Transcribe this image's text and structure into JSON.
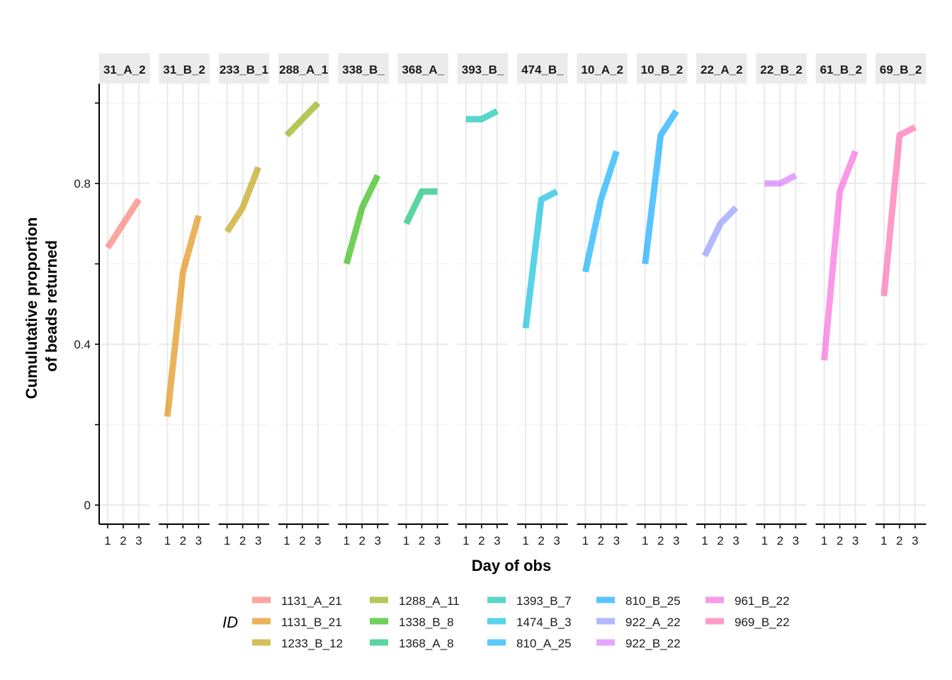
{
  "chart_data": {
    "type": "line",
    "xlabel": "Day of obs",
    "ylabel_lines": [
      "Cumulutative proportion",
      "of beads returned"
    ],
    "x_ticks": [
      "1",
      "2",
      "3"
    ],
    "y_ticks": [
      "0",
      "0.4",
      "0.8"
    ],
    "ylim": [
      -0.05,
      1.04
    ],
    "grid": true,
    "legend_title": "ID",
    "legend_position": "bottom",
    "panels": [
      {
        "strip": "31_A_2",
        "series": "1131_A_21",
        "color": "#F8766D",
        "days": [
          1,
          3
        ],
        "values": [
          0.64,
          0.76
        ]
      },
      {
        "strip": "31_B_2",
        "series": "1131_B_21",
        "color": "#E18A00",
        "days": [
          1,
          2,
          3
        ],
        "values": [
          0.22,
          0.58,
          0.72
        ]
      },
      {
        "strip": "233_B_1",
        "series": "1233_B_12",
        "color": "#BE9C00",
        "days": [
          1,
          2,
          3
        ],
        "values": [
          0.68,
          0.74,
          0.84
        ]
      },
      {
        "strip": "288_A_1",
        "series": "1288_A_11",
        "color": "#8CAB00",
        "days": [
          1,
          3
        ],
        "values": [
          0.92,
          1.0
        ]
      },
      {
        "strip": "338_B_",
        "series": "1338_B_8",
        "color": "#24B700",
        "days": [
          1,
          2,
          3
        ],
        "values": [
          0.6,
          0.74,
          0.82
        ]
      },
      {
        "strip": "368_A_",
        "series": "1368_A_8",
        "color": "#00BE70",
        "days": [
          1,
          2,
          3
        ],
        "values": [
          0.7,
          0.78,
          0.78
        ]
      },
      {
        "strip": "393_B_",
        "series": "1393_B_7",
        "color": "#00C1AB",
        "days": [
          1,
          2,
          3
        ],
        "values": [
          0.96,
          0.96,
          0.98
        ]
      },
      {
        "strip": "474_B_",
        "series": "1474_B_3",
        "color": "#00BBDA",
        "days": [
          1,
          2,
          3
        ],
        "values": [
          0.44,
          0.76,
          0.78
        ]
      },
      {
        "strip": "10_A_2",
        "series": "810_A_25",
        "color": "#00ACFC",
        "days": [
          1,
          2,
          3
        ],
        "values": [
          0.58,
          0.76,
          0.88
        ]
      },
      {
        "strip": "10_B_2",
        "series": "810_B_25",
        "color": "#00A5FF",
        "days": [
          1,
          2,
          3
        ],
        "values": [
          0.6,
          0.92,
          0.98
        ]
      },
      {
        "strip": "22_A_2",
        "series": "922_A_22",
        "color": "#8B93FF",
        "days": [
          1,
          2,
          3
        ],
        "values": [
          0.62,
          0.7,
          0.74
        ]
      },
      {
        "strip": "22_B_2",
        "series": "922_B_22",
        "color": "#D575FE",
        "days": [
          1,
          2,
          3
        ],
        "values": [
          0.8,
          0.8,
          0.82
        ]
      },
      {
        "strip": "61_B_2",
        "series": "961_B_22",
        "color": "#F962DD",
        "days": [
          1,
          2,
          3
        ],
        "values": [
          0.36,
          0.78,
          0.88
        ]
      },
      {
        "strip": "69_B_2",
        "series": "969_B_22",
        "color": "#FF65AC",
        "days": [
          1,
          2,
          3
        ],
        "values": [
          0.52,
          0.92,
          0.94
        ]
      }
    ],
    "legend_columns": [
      [
        "1131_A_21",
        "1131_B_21",
        "1233_B_12"
      ],
      [
        "1288_A_11",
        "1338_B_8",
        "1368_A_8"
      ],
      [
        "1393_B_7",
        "1474_B_3",
        "810_A_25"
      ],
      [
        "810_B_25",
        "922_A_22",
        "922_B_22"
      ],
      [
        "961_B_22",
        "969_B_22"
      ]
    ]
  }
}
